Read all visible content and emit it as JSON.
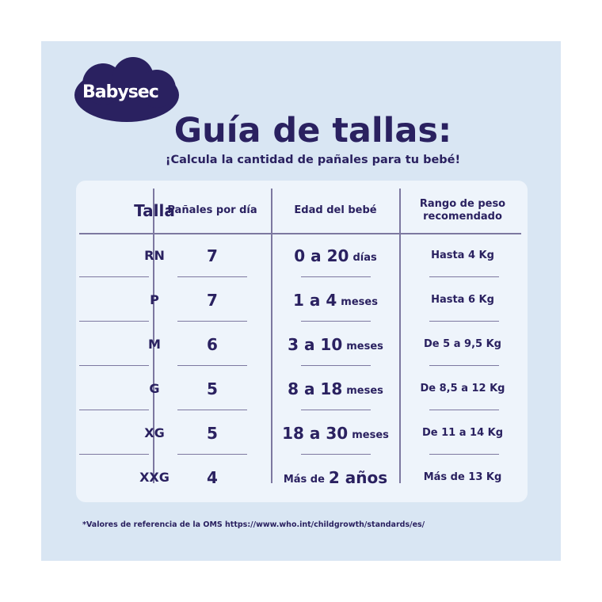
{
  "brand": {
    "logo_text": "Babysec",
    "color": "#2a2160"
  },
  "title": "Guía de tallas:",
  "subtitle": "¡Calcula la cantidad de pañales para tu bebé!",
  "table": {
    "headers": [
      "Talla",
      "Pañales por día",
      "Edad del bebé",
      "Rango de peso recomendado"
    ],
    "rows": [
      {
        "talla": "RN",
        "panales": "7",
        "edad_big": "0 a 20",
        "edad_small": "días",
        "peso": "Hasta 4 Kg"
      },
      {
        "talla": "P",
        "panales": "7",
        "edad_big": "1 a 4",
        "edad_small": "meses",
        "peso": "Hasta 6 Kg"
      },
      {
        "talla": "M",
        "panales": "6",
        "edad_big": "3 a 10",
        "edad_small": "meses",
        "peso": "De 5 a 9,5 Kg"
      },
      {
        "talla": "G",
        "panales": "5",
        "edad_big": "8 a 18",
        "edad_small": "meses",
        "peso": "De 8,5 a 12 Kg"
      },
      {
        "talla": "XG",
        "panales": "5",
        "edad_big": "18 a 30",
        "edad_small": "meses",
        "peso": "De 11 a 14 Kg"
      },
      {
        "talla": "XXG",
        "panales": "4",
        "edad_pre": "Más de",
        "edad_big": "2 años",
        "peso": "Más de 13 Kg"
      }
    ]
  },
  "footnote": "*Valores de referencia de la OMS https://www.who.int/childgrowth/standards/es/"
}
